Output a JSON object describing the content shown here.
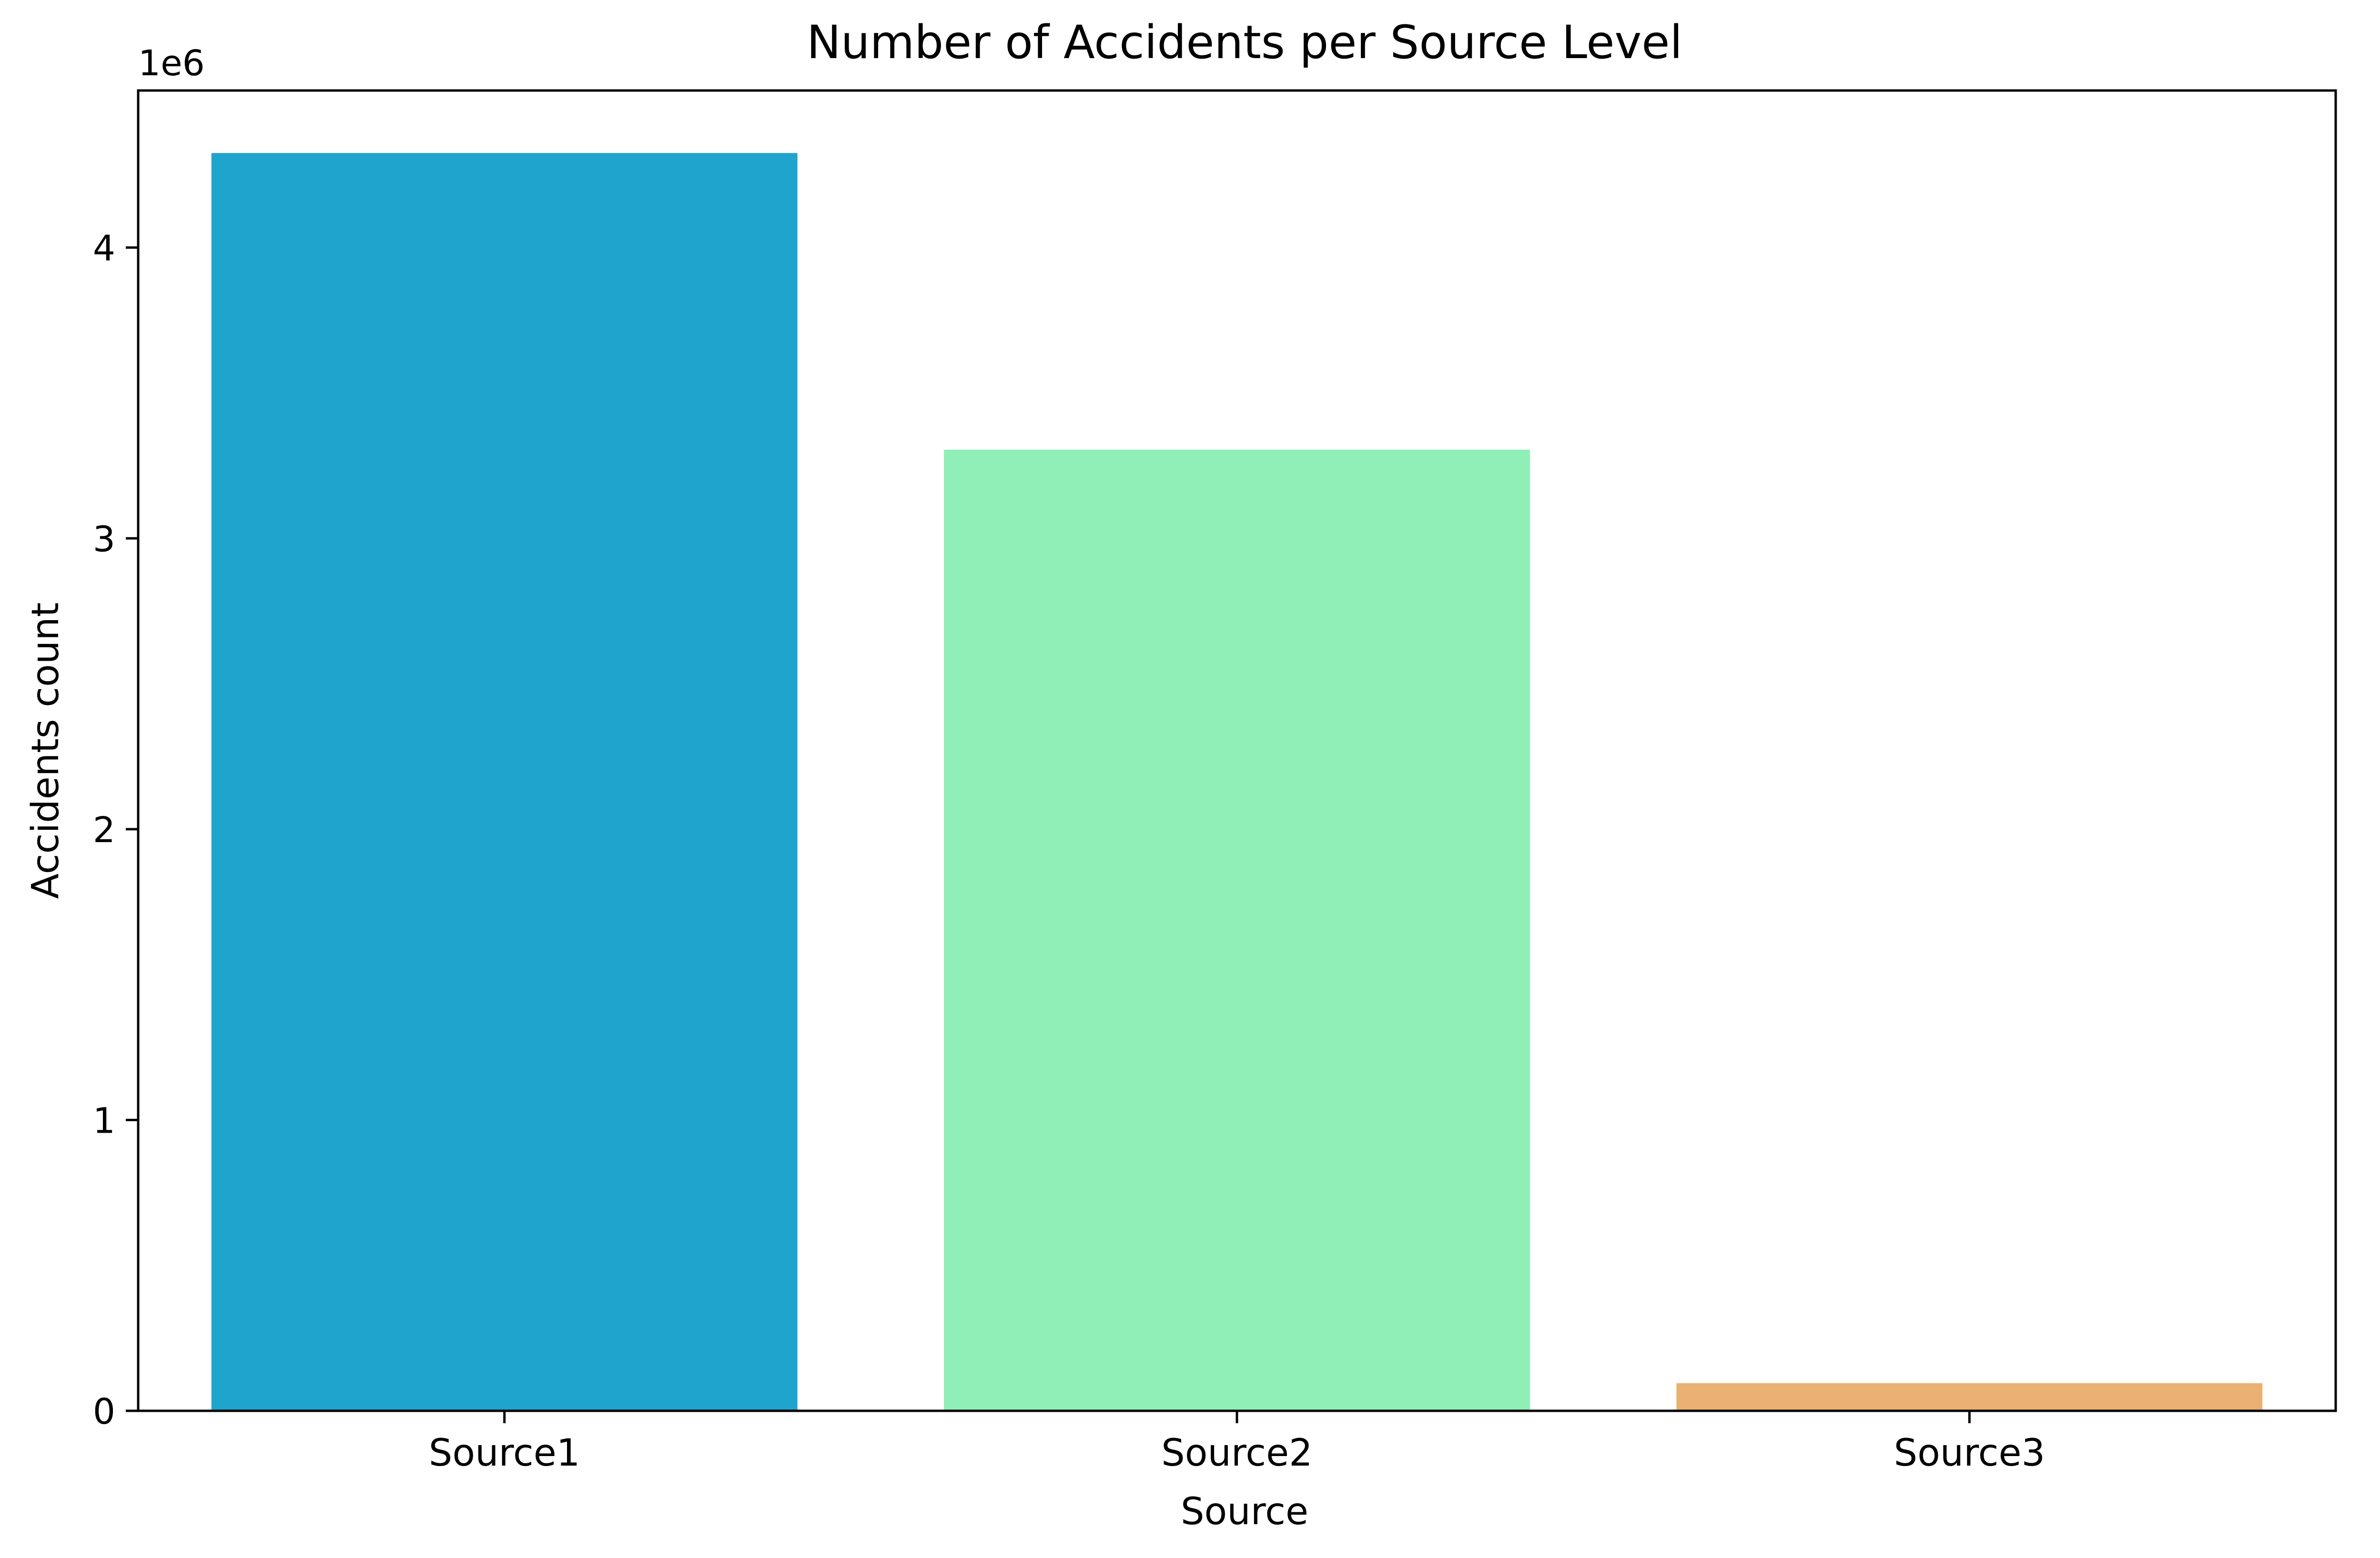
{
  "chart_data": {
    "type": "bar",
    "title": "Number of Accidents per Source Level",
    "xlabel": "Source",
    "ylabel": "Accidents count",
    "offset_label": "1e6",
    "categories": [
      "Source1",
      "Source2",
      "Source3"
    ],
    "values": [
      4325000,
      3305000,
      95000
    ],
    "colors": [
      "#1fa5cd",
      "#90efb6",
      "#ebb172"
    ],
    "ylim": [
      0,
      4540000
    ],
    "yticks": [
      0,
      1000000,
      2000000,
      3000000,
      4000000
    ],
    "ytick_labels": [
      "0",
      "1",
      "2",
      "3",
      "4"
    ],
    "grid": false,
    "legend": "none"
  }
}
